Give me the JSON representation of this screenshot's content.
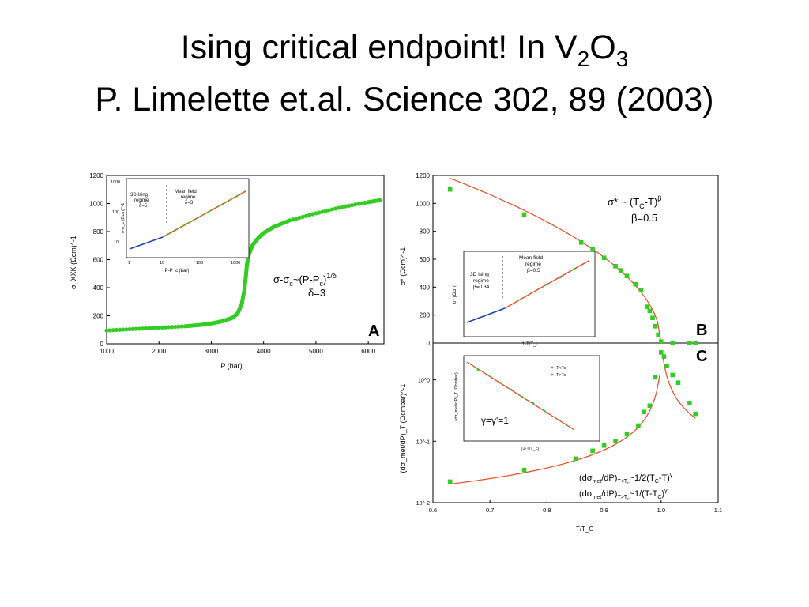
{
  "slide": {
    "title_line1": {
      "main": "Ising critical endpoint!  In V",
      "sub1": "2",
      "mid": "O",
      "sub2": "3"
    },
    "title_line2": "P. Limelette et.al. Science 302, 89 (2003)"
  },
  "chart_data": [
    {
      "panel": "A",
      "type": "scatter",
      "xlabel": "P (bar)",
      "ylabel": "σ_XXK  (Ωcm)^-1",
      "xlim": [
        1000,
        6300
      ],
      "ylim": [
        0,
        1200
      ],
      "xticks": [
        "1000",
        "2000",
        "3000",
        "4000",
        "5000",
        "6000"
      ],
      "yticks": [
        "0",
        "200",
        "400",
        "600",
        "800",
        "1000",
        "1200"
      ],
      "annotation": [
        "σ-σ",
        "c",
        "~(P-P",
        "c",
        ")",
        "1/δ",
        "δ=3"
      ],
      "series": [
        {
          "name": "",
          "color": "#33cc22",
          "x": [
            1000,
            1500,
            2000,
            2500,
            2800,
            3000,
            3200,
            3400,
            3500,
            3580,
            3630,
            3660,
            3680,
            3700,
            3720,
            3750,
            3800,
            3900,
            4000,
            4200,
            4500,
            5000,
            5500,
            6000,
            6250
          ],
          "y": [
            95,
            105,
            115,
            125,
            135,
            145,
            160,
            185,
            215,
            280,
            380,
            480,
            560,
            605,
            640,
            670,
            710,
            755,
            790,
            835,
            880,
            930,
            975,
            1010,
            1025
          ]
        }
      ],
      "inset": {
        "xlabel": "P-P_c (bar)",
        "ylabel": "σ-σ_c (Ωcm)^-1",
        "xticks": [
          "1",
          "10",
          "100",
          "1000"
        ],
        "yticks": [
          "10",
          "100",
          "1000"
        ],
        "regime_left": [
          "3D Ising",
          "regime",
          "δ=5"
        ],
        "regime_right": [
          "Mean field",
          "regime",
          "δ=3"
        ]
      }
    },
    {
      "panel": "B",
      "type": "scatter",
      "ylabel": "σ*  (Ωcm)^-1",
      "xlim": [
        0.6,
        1.1
      ],
      "ylim": [
        0,
        1200
      ],
      "yticks": [
        "0",
        "200",
        "400",
        "600",
        "800",
        "1000",
        "1200"
      ],
      "annotation": [
        "σ* ~ (T",
        "C",
        "-T)",
        "β",
        "β=0.5"
      ],
      "series": [
        {
          "name": "",
          "color": "#33cc22",
          "x": [
            0.63,
            0.76,
            0.86,
            0.88,
            0.9,
            0.92,
            0.93,
            0.94,
            0.955,
            0.965,
            0.975,
            0.98,
            0.985,
            0.99,
            0.995,
            1.0,
            1.02,
            1.05,
            1.06
          ],
          "y": [
            1100,
            920,
            720,
            670,
            610,
            550,
            520,
            480,
            420,
            380,
            260,
            230,
            180,
            120,
            60,
            10,
            0,
            0,
            0
          ]
        }
      ],
      "inset": {
        "xlabel": "1-T/T_c",
        "ylabel": "σ* (Ωcm)",
        "regime_left": [
          "3D Ising",
          "regime",
          "β=0.34"
        ],
        "regime_right": [
          "Mean field",
          "regime",
          "β=0.5"
        ]
      }
    },
    {
      "panel": "C",
      "type": "scatter",
      "xlabel": "T/T_C",
      "ylabel": "(dσ_met/dP)_T  (Ωcmbar)^-1",
      "xlim": [
        0.6,
        1.1
      ],
      "xticks": [
        "0.6",
        "0.7",
        "0.8",
        "0.9",
        "1.0",
        "1.1"
      ],
      "yticks": [
        "10^-2",
        "10^-1",
        "10^0"
      ],
      "annotation": [
        [
          "(dσ",
          "met",
          "/dP)",
          "T<T",
          "c",
          "~1/2(T",
          "C",
          "-T)",
          "γ"
        ],
        [
          "(dσ",
          "met",
          "/dP)",
          "T>T",
          "c",
          "~1/(T-T",
          "C",
          ")",
          "γ'"
        ]
      ],
      "series": [
        {
          "name": "",
          "color": "#33cc22",
          "x": [
            0.63,
            0.76,
            0.85,
            0.88,
            0.9,
            0.92,
            0.94,
            0.96,
            0.97,
            0.98,
            0.99,
            1.0,
            1.005,
            1.01,
            1.02,
            1.03,
            1.05,
            1.06
          ],
          "y": [
            0.022,
            0.034,
            0.052,
            0.07,
            0.085,
            0.1,
            0.13,
            0.18,
            0.3,
            0.38,
            1.1,
            2.8,
            2.4,
            1.7,
            1.2,
            0.9,
            0.42,
            0.28
          ]
        }
      ],
      "inset": {
        "xlabel": "|1-T/T_c|",
        "ylabel": "(dσ_met/dP)_T (Ωcmbar)",
        "legend": [
          "T<Tc",
          "T>Tc"
        ],
        "annotation": "γ=γ'=1"
      }
    }
  ]
}
